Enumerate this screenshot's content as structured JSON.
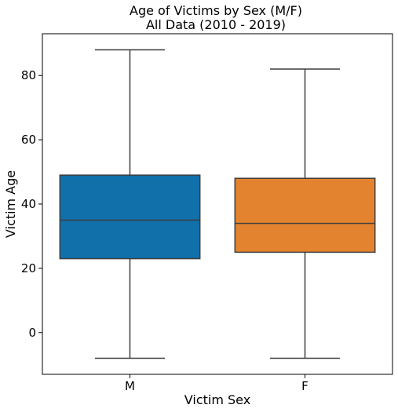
{
  "chart_data": {
    "type": "box",
    "title": "Age of Victims by Sex (M/F)",
    "subtitle": "All Data (2010 - 2019)",
    "xlabel": "Victim Sex",
    "ylabel": "Victim Age",
    "ylim": [
      -13,
      93
    ],
    "yticks": [
      0,
      20,
      40,
      60,
      80
    ],
    "grid": false,
    "categories": [
      "M",
      "F"
    ],
    "boxes": [
      {
        "category": "M",
        "whisker_low": -8,
        "q1": 23,
        "median": 35,
        "q3": 49,
        "whisker_high": 88,
        "color": "#1170aa"
      },
      {
        "category": "F",
        "whisker_low": -8,
        "q1": 25,
        "median": 34,
        "q3": 48,
        "whisker_high": 82,
        "color": "#e3832f"
      }
    ]
  }
}
